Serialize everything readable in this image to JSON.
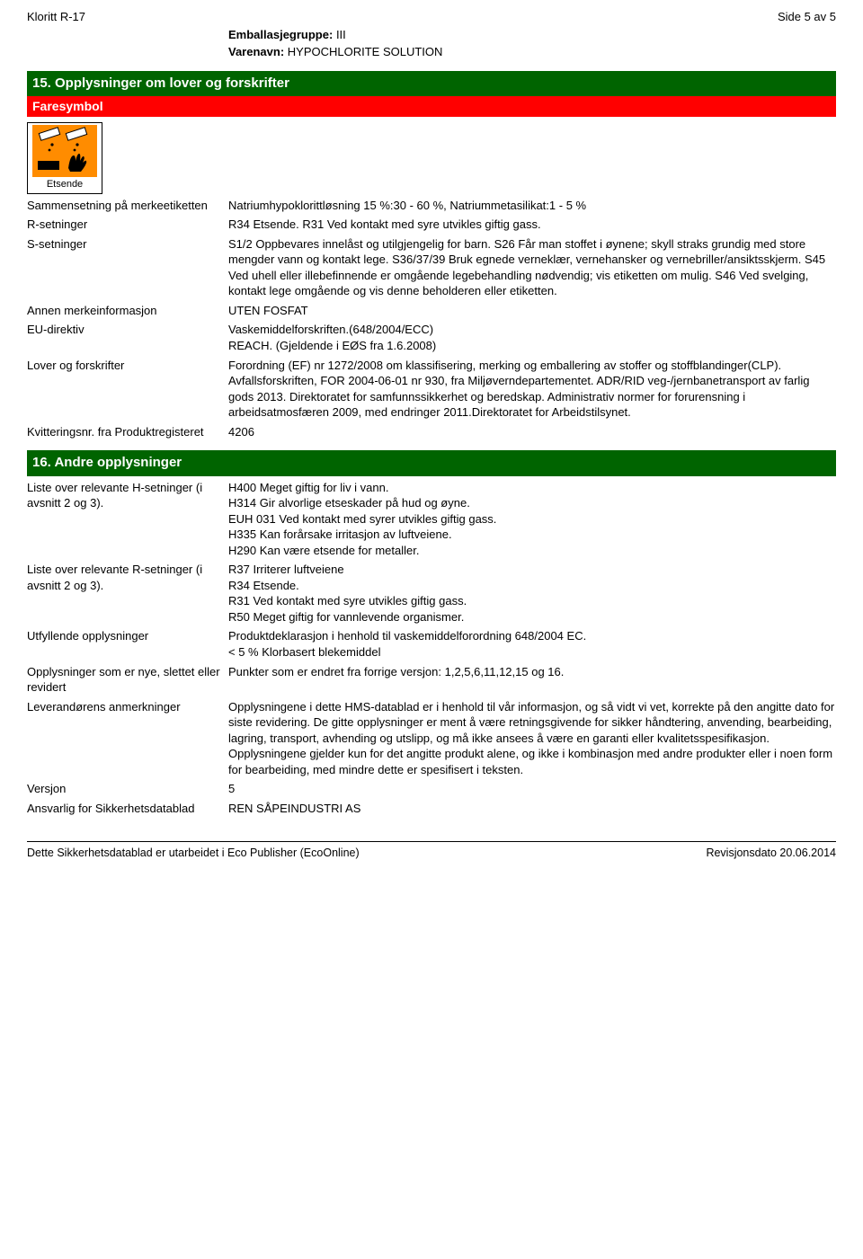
{
  "doc": {
    "title_left": "Kloritt R-17",
    "title_right": "Side 5 av 5",
    "sub_line1_key": "Emballasjegruppe:",
    "sub_line1_val": "III",
    "sub_line2_key": "Varenavn:",
    "sub_line2_val": "HYPOCHLORITE SOLUTION"
  },
  "section15": {
    "heading": "15. Opplysninger om lover og forskrifter",
    "faresymbol": "Faresymbol",
    "hazard_label": "Etsende",
    "hazard_colors": {
      "bg": "#ff8c00",
      "drop": "#000",
      "hand": "#000"
    },
    "rows": [
      {
        "k": "Sammensetning på merkeetiketten",
        "v": "Natriumhypoklorittløsning 15 %:30 - 60 %, Natriummetasilikat:1 - 5 %"
      },
      {
        "k": "R-setninger",
        "v": "R34 Etsende. R31 Ved kontakt med syre utvikles giftig gass."
      },
      {
        "k": "S-setninger",
        "v": "S1/2 Oppbevares innelåst og utilgjengelig for barn. S26 Får man stoffet i øynene; skyll straks grundig med store mengder vann og kontakt lege. S36/37/39 Bruk egnede verneklær, vernehansker og vernebriller/ansiktsskjerm. S45 Ved uhell eller illebefinnende er omgående legebehandling nødvendig; vis etiketten om mulig. S46 Ved svelging, kontakt lege omgående og vis denne beholderen eller etiketten."
      },
      {
        "k": "Annen merkeinformasjon",
        "v": "UTEN FOSFAT"
      },
      {
        "k": "EU-direktiv",
        "v": "Vaskemiddelforskriften.(648/2004/ECC)\nREACH. (Gjeldende i EØS fra 1.6.2008)"
      },
      {
        "k": "Lover og forskrifter",
        "v": "Forordning (EF) nr 1272/2008 om klassifisering, merking og emballering av stoffer og stoffblandinger(CLP). Avfallsforskriften, FOR 2004-06-01 nr 930, fra Miljøverndepartementet. ADR/RID veg-/jernbanetransport av farlig gods 2013. Direktoratet for samfunnssikkerhet og beredskap. Administrativ normer for forurensning i arbeidsatmosfæren 2009, med endringer 2011.Direktoratet for Arbeidstilsynet."
      },
      {
        "k": "Kvitteringsnr. fra Produktregisteret",
        "v": "4206"
      }
    ]
  },
  "section16": {
    "heading": "16. Andre opplysninger",
    "rows": [
      {
        "k": "Liste over relevante H-setninger (i avsnitt 2 og 3).",
        "v": "H400 Meget giftig for liv i vann.\nH314 Gir alvorlige etseskader på hud og øyne.\nEUH 031 Ved kontakt med syrer utvikles giftig gass.\nH335 Kan forårsake irritasjon av luftveiene.\nH290 Kan være etsende for metaller."
      },
      {
        "k": "Liste over relevante R-setninger (i avsnitt 2 og 3).",
        "v": "R37 Irriterer luftveiene\nR34 Etsende.\nR31 Ved kontakt med syre utvikles giftig gass.\nR50 Meget giftig for vannlevende organismer."
      },
      {
        "k": "Utfyllende opplysninger",
        "v": "Produktdeklarasjon i henhold til vaskemiddelforordning 648/2004 EC.\n< 5 % Klorbasert blekemiddel"
      },
      {
        "k": "Opplysninger som er nye, slettet eller revidert",
        "v": "Punkter som er endret fra forrige versjon: 1,2,5,6,11,12,15 og 16."
      },
      {
        "k": "Leverandørens anmerkninger",
        "v": "Opplysningene i dette HMS-datablad er i henhold til vår informasjon, og så vidt vi vet, korrekte på den angitte dato for siste revidering. De gitte opplysninger er ment å være retningsgivende for sikker håndtering, anvending,  bearbeiding, lagring, transport, avhending og utslipp, og må ikke ansees å være en garanti eller kvalitetsspesifikasjon. Opplysningene gjelder kun for det angitte produkt alene, og ikke i kombinasjon med andre produkter eller i noen form for bearbeiding, med mindre dette er spesifisert i teksten."
      },
      {
        "k": "Versjon",
        "v": "5"
      },
      {
        "k": "Ansvarlig for Sikkerhetsdatablad",
        "v": "REN SÅPEINDUSTRI AS"
      }
    ]
  },
  "footer": {
    "left": "Dette Sikkerhetsdatablad er utarbeidet i Eco Publisher (EcoOnline)",
    "right": "Revisjonsdato 20.06.2014"
  }
}
